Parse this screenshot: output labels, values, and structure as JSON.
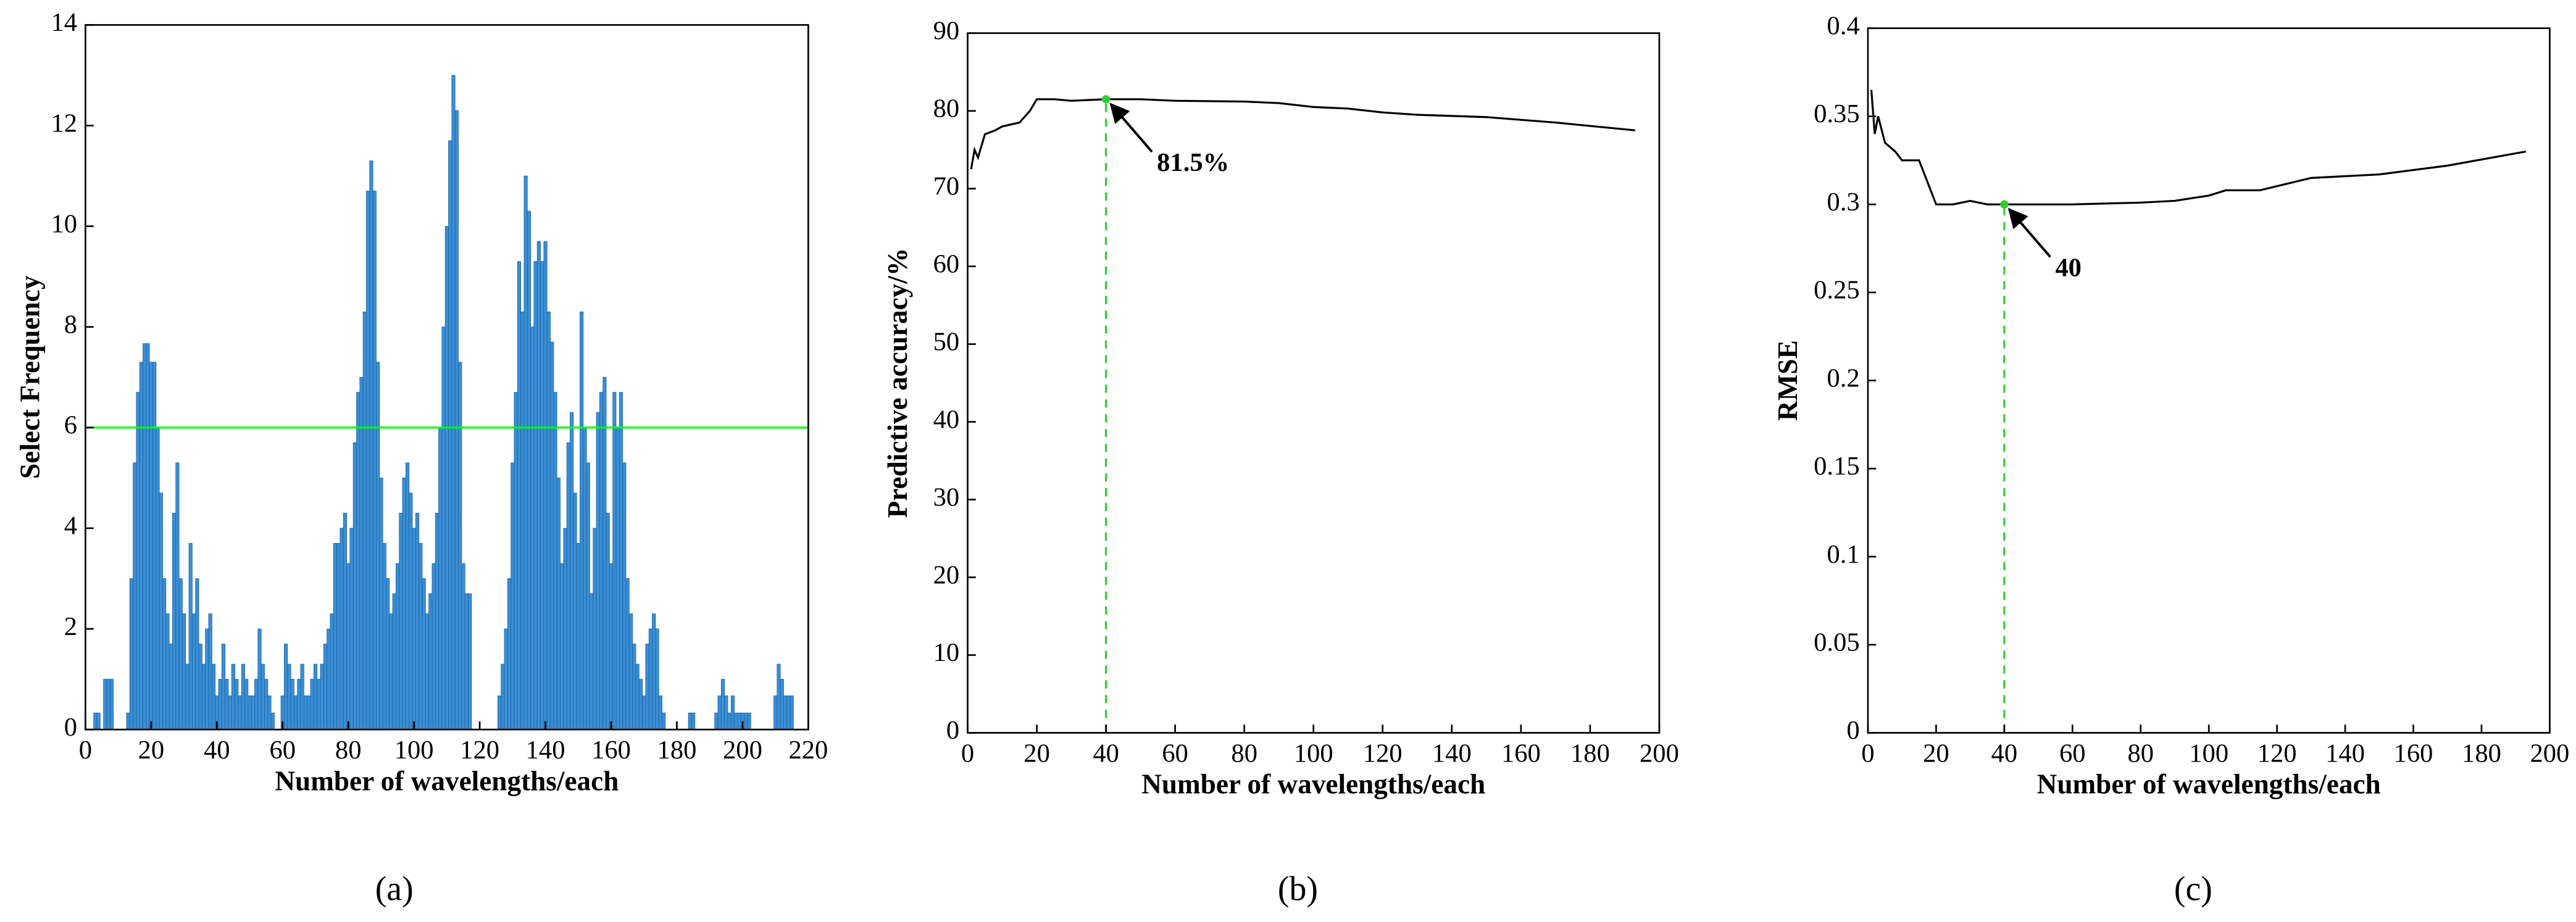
{
  "chart_data": [
    {
      "type": "bar",
      "caption": "(a)",
      "xlabel": "Number of wavelengths/each",
      "ylabel": "Select Frequency",
      "color": "#3a8fd6",
      "xlim": [
        0,
        220
      ],
      "xticks": [
        0,
        20,
        40,
        60,
        80,
        100,
        120,
        140,
        160,
        180,
        200,
        220
      ],
      "ylim": [
        0,
        14
      ],
      "yticks": [
        0,
        2,
        4,
        6,
        8,
        10,
        12,
        14
      ],
      "hline": 6,
      "hline_color": "#00ff00",
      "x": [
        3,
        4,
        6,
        7,
        8,
        13,
        14,
        15,
        16,
        17,
        18,
        19,
        20,
        21,
        22,
        23,
        24,
        25,
        26,
        27,
        28,
        29,
        30,
        31,
        32,
        33,
        34,
        35,
        36,
        37,
        38,
        39,
        40,
        41,
        42,
        43,
        44,
        45,
        46,
        47,
        48,
        49,
        50,
        51,
        52,
        53,
        54,
        55,
        56,
        57,
        60,
        61,
        62,
        63,
        64,
        65,
        66,
        67,
        68,
        69,
        70,
        71,
        72,
        73,
        74,
        75,
        76,
        77,
        78,
        79,
        80,
        81,
        82,
        83,
        84,
        85,
        86,
        87,
        88,
        89,
        90,
        91,
        92,
        93,
        94,
        95,
        96,
        97,
        98,
        99,
        100,
        101,
        102,
        103,
        104,
        105,
        106,
        107,
        108,
        109,
        110,
        111,
        112,
        113,
        114,
        115,
        116,
        117,
        126,
        127,
        128,
        129,
        130,
        131,
        132,
        133,
        134,
        135,
        136,
        137,
        138,
        139,
        140,
        141,
        142,
        143,
        144,
        145,
        146,
        147,
        148,
        149,
        150,
        151,
        152,
        153,
        154,
        155,
        156,
        157,
        158,
        159,
        160,
        161,
        162,
        163,
        164,
        165,
        166,
        167,
        168,
        169,
        170,
        171,
        172,
        173,
        174,
        175,
        176,
        184,
        185,
        192,
        193,
        194,
        195,
        196,
        197,
        198,
        199,
        200,
        201,
        202,
        210,
        211,
        212,
        213,
        214,
        215
      ],
      "values": [
        0.33,
        0.33,
        1,
        1,
        1,
        0.33,
        3,
        5.3,
        6.7,
        7.3,
        7.67,
        7.67,
        7.3,
        7.3,
        6,
        4.7,
        3,
        2.3,
        1.7,
        4.3,
        5.3,
        3,
        2.3,
        1.3,
        3.7,
        2.3,
        3,
        1.7,
        1.3,
        2,
        2.3,
        1.3,
        0.67,
        1,
        1.7,
        1,
        0.67,
        1.3,
        1,
        0.67,
        1.3,
        1,
        0.67,
        0.67,
        1,
        2,
        1.3,
        1,
        0.67,
        0.33,
        0.67,
        1.7,
        1.3,
        1,
        0.67,
        1,
        1.3,
        0.67,
        0.67,
        1,
        1.3,
        1,
        1.3,
        1.7,
        2,
        2.3,
        3.7,
        3.7,
        4,
        4.3,
        3.3,
        4,
        5.7,
        6.7,
        7,
        8.3,
        10.7,
        11.3,
        10.7,
        7.3,
        5,
        3.7,
        3,
        2.3,
        2.7,
        3.3,
        4.3,
        5,
        5.3,
        4.7,
        4,
        4.3,
        3.7,
        3,
        2.3,
        2.7,
        3.3,
        4.3,
        6,
        8,
        10,
        11.7,
        13,
        12.3,
        7.3,
        3.3,
        2.7,
        2.7,
        0.67,
        1.3,
        2,
        3,
        5.3,
        6.7,
        9.3,
        8.3,
        11,
        10.3,
        8,
        9.3,
        9.7,
        9.3,
        9.7,
        8.3,
        7.7,
        6.7,
        5,
        3.3,
        4,
        5.7,
        6.3,
        4.7,
        3.7,
        8.3,
        6,
        5.3,
        2.7,
        4,
        6.3,
        6.7,
        7,
        4.3,
        3.3,
        6.7,
        6,
        6.7,
        5.3,
        3,
        2.3,
        1.7,
        1.3,
        1,
        0.67,
        1.7,
        2,
        2.3,
        2,
        0.67,
        0.33,
        0.33,
        0.33,
        0.33,
        0.67,
        1,
        0.67,
        0.33,
        0.67,
        0.33,
        0.33,
        0.33,
        0.33,
        0.33,
        0.67,
        1.3,
        1,
        0.67,
        0.67,
        0.67
      ]
    },
    {
      "type": "line",
      "caption": "(b)",
      "xlabel": "Number of wavelengths/each",
      "ylabel": "Predictive accuracy/%",
      "color": "#000000",
      "xlim": [
        0,
        200
      ],
      "xticks": [
        0,
        20,
        40,
        60,
        80,
        100,
        120,
        140,
        160,
        180,
        200
      ],
      "ylim": [
        0,
        90
      ],
      "yticks": [
        0,
        10,
        20,
        30,
        40,
        50,
        60,
        70,
        80,
        90
      ],
      "x": [
        1,
        2,
        3,
        5,
        8,
        10,
        15,
        18,
        20,
        25,
        30,
        40,
        50,
        60,
        80,
        90,
        100,
        110,
        120,
        130,
        150,
        170,
        193
      ],
      "values": [
        72.5,
        75,
        74,
        77,
        77.5,
        78,
        78.5,
        80,
        81.5,
        81.5,
        81.3,
        81.5,
        81.5,
        81.3,
        81.2,
        81,
        80.5,
        80.3,
        79.8,
        79.5,
        79.2,
        78.5,
        77.5
      ],
      "marker": {
        "x": 40,
        "y": 81.5,
        "label": "81.5%"
      },
      "marker_color": "#33cc33"
    },
    {
      "type": "line",
      "caption": "(c)",
      "xlabel": "Number of wavelengths/each",
      "ylabel": "RMSE",
      "color": "#000000",
      "xlim": [
        0,
        200
      ],
      "xticks": [
        0,
        20,
        40,
        60,
        80,
        100,
        120,
        140,
        160,
        180,
        200
      ],
      "ylim": [
        0,
        0.4
      ],
      "yticks": [
        0,
        0.05,
        0.1,
        0.15,
        0.2,
        0.25,
        0.3,
        0.35,
        0.4
      ],
      "x": [
        1,
        2,
        3,
        5,
        8,
        10,
        15,
        18,
        20,
        25,
        30,
        35,
        40,
        50,
        60,
        80,
        90,
        100,
        105,
        115,
        130,
        150,
        170,
        193
      ],
      "values": [
        0.365,
        0.34,
        0.35,
        0.335,
        0.33,
        0.325,
        0.325,
        0.31,
        0.3,
        0.3,
        0.302,
        0.3,
        0.3,
        0.3,
        0.3,
        0.301,
        0.302,
        0.305,
        0.308,
        0.308,
        0.315,
        0.317,
        0.322,
        0.33
      ],
      "marker": {
        "x": 40,
        "y": 0.3,
        "label": "40"
      },
      "marker_color": "#33cc33"
    }
  ]
}
